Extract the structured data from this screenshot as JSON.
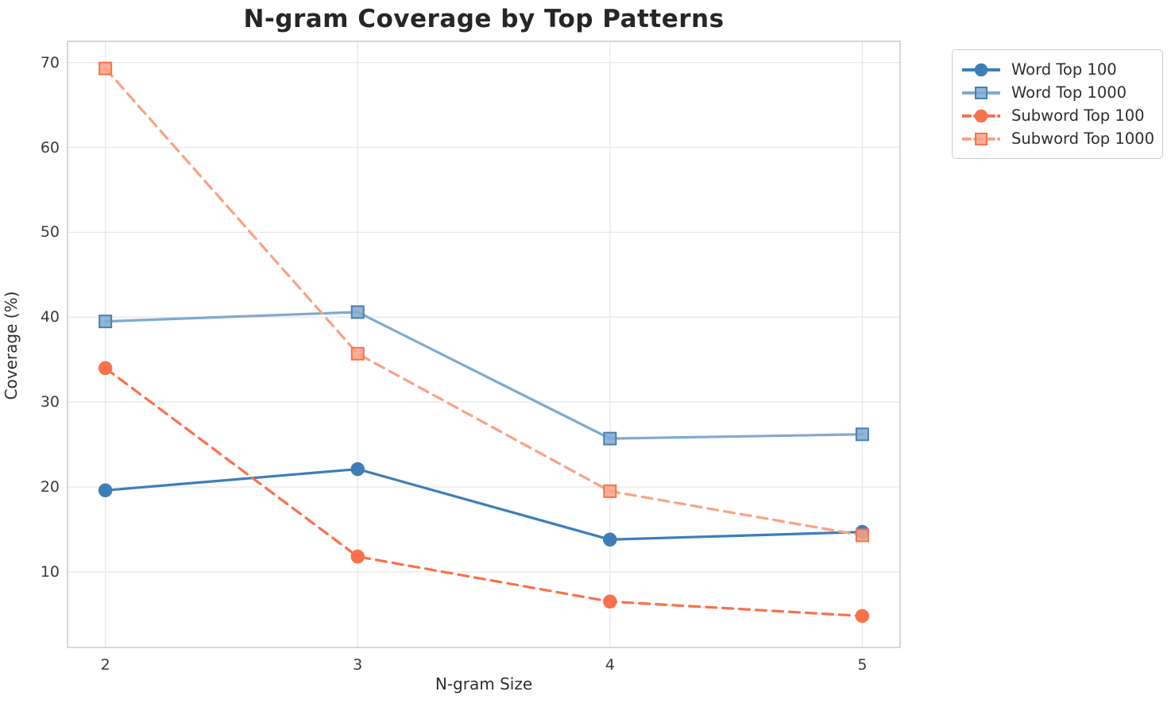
{
  "chart_data": {
    "type": "line",
    "title": "N-gram Coverage by Top Patterns",
    "xlabel": "N-gram Size",
    "ylabel": "Coverage (%)",
    "x": [
      2,
      3,
      4,
      5
    ],
    "xtick_labels": [
      "2",
      "3",
      "4",
      "5"
    ],
    "yticks": [
      10,
      20,
      30,
      40,
      50,
      60,
      70
    ],
    "ytick_labels": [
      "10",
      "20",
      "30",
      "40",
      "50",
      "60",
      "70"
    ],
    "xlim": [
      1.85,
      5.15
    ],
    "ylim": [
      1.1,
      72.5
    ],
    "grid": true,
    "legend_position": "outside-top-right",
    "series": [
      {
        "name": "Word Top 100",
        "values": [
          19.6,
          22.1,
          13.8,
          14.7
        ],
        "color": "#3d7eb8",
        "line_style": "solid",
        "marker": "circle",
        "marker_edge": "#3d7eb8"
      },
      {
        "name": "Word Top 1000",
        "values": [
          39.5,
          40.6,
          25.7,
          26.2
        ],
        "color": "#7fa9d1",
        "line_style": "solid",
        "marker": "square",
        "marker_edge": "#4a7fae"
      },
      {
        "name": "Subword Top 100",
        "values": [
          34.0,
          11.8,
          6.5,
          4.8
        ],
        "color": "#f8714a",
        "line_style": "dashed",
        "marker": "circle",
        "marker_edge": "#f8714a"
      },
      {
        "name": "Subword Top 1000",
        "values": [
          69.3,
          35.7,
          19.5,
          14.3
        ],
        "color": "#fba184",
        "line_style": "dashed",
        "marker": "square",
        "marker_edge": "#f8714a"
      }
    ],
    "colors": {
      "background": "#ffffff",
      "grid": "#e9e9e9",
      "spine": "#cccccc",
      "title_text": "#262626",
      "tick_text": "#3a3a3a",
      "label_text": "#2e2e2e"
    }
  }
}
